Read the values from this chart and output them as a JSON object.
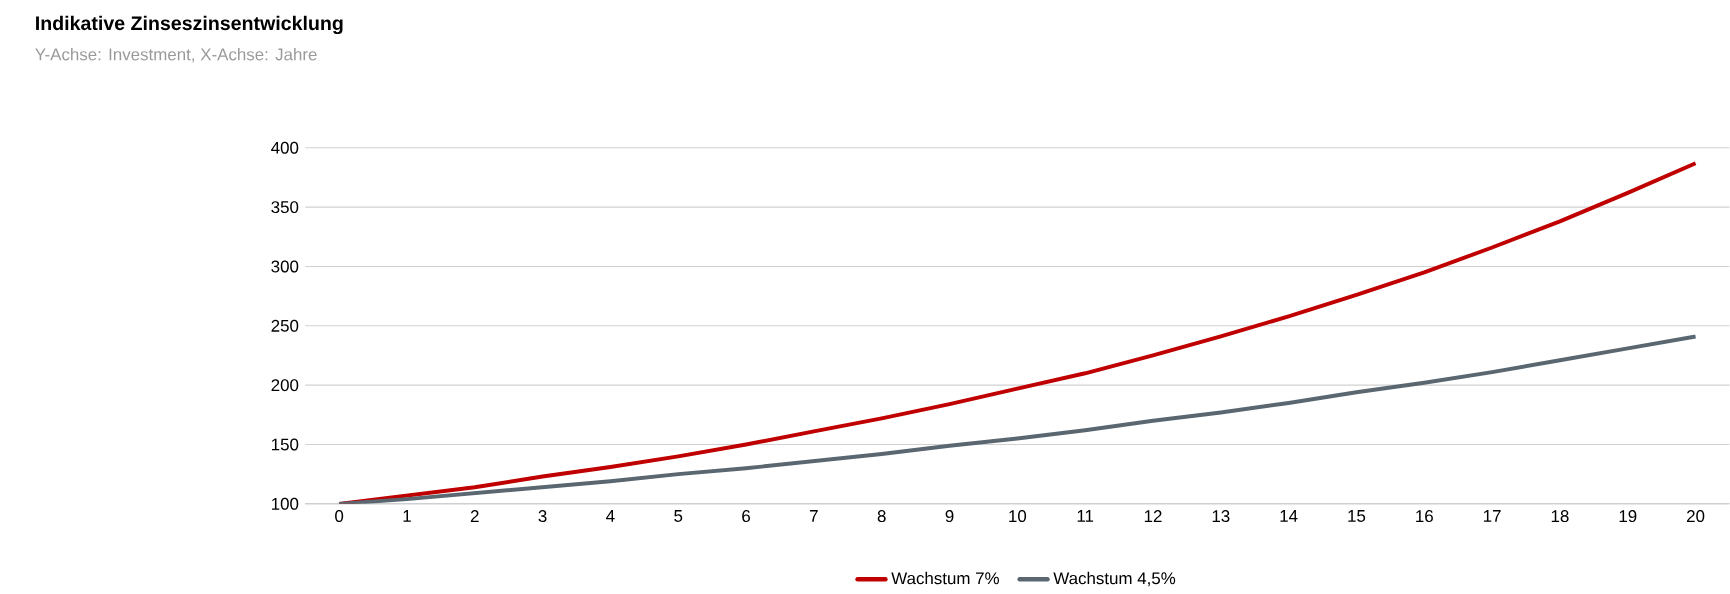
{
  "chart_data": {
    "type": "line",
    "title": "Indikative Zinseszinsentwicklung",
    "subtitle": "Y-Achse: Investment, X-Achse: Jahre",
    "categories": [
      "0",
      "1",
      "2",
      "3",
      "4",
      "5",
      "6",
      "7",
      "8",
      "9",
      "10",
      "11",
      "12",
      "13",
      "14",
      "15",
      "16",
      "17",
      "18",
      "19",
      "20"
    ],
    "series": [
      {
        "name": "Wachstum 7%",
        "color": "#c00000",
        "values": [
          100,
          107,
          114,
          123,
          131,
          140,
          150,
          161,
          172,
          184,
          197,
          210,
          225,
          241,
          258,
          276,
          295,
          316,
          338,
          362,
          387
        ]
      },
      {
        "name": "Wachstum 4,5%",
        "color": "#5b6770",
        "values": [
          100,
          104,
          109,
          114,
          119,
          125,
          130,
          136,
          142,
          149,
          155,
          162,
          170,
          177,
          185,
          194,
          202,
          211,
          221,
          231,
          241
        ]
      }
    ],
    "ylim": [
      100,
      400
    ],
    "yticks": [
      100,
      150,
      200,
      250,
      300,
      350,
      400
    ],
    "grid": "y",
    "legend": "bottom",
    "marker": "none",
    "line_style": "solid"
  }
}
